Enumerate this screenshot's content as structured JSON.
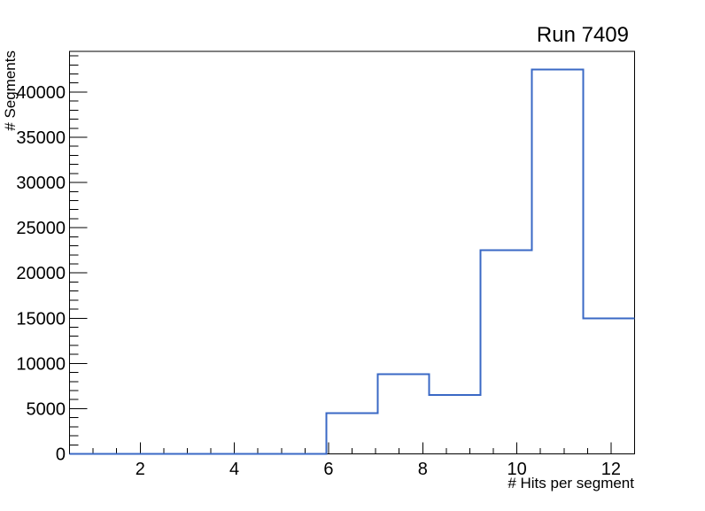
{
  "chart_data": {
    "type": "bar",
    "subtype": "step-histogram",
    "title": "Run 7409",
    "xlabel": "# Hits per segment",
    "ylabel": "# Segments",
    "bin_edges": [
      0.5,
      1.591,
      2.682,
      3.773,
      4.864,
      5.955,
      7.045,
      8.136,
      9.227,
      10.318,
      11.409,
      12.5
    ],
    "values": [
      0,
      0,
      0,
      0,
      0,
      4500,
      8800,
      6500,
      22500,
      42500,
      15000
    ],
    "xlim": [
      0.5,
      12.5
    ],
    "ylim": [
      0,
      44500
    ],
    "x_major_ticks": [
      2,
      4,
      6,
      8,
      10,
      12
    ],
    "x_minor_step": 0.5,
    "y_major_ticks": [
      0,
      5000,
      10000,
      15000,
      20000,
      25000,
      30000,
      35000,
      40000
    ],
    "y_minor_step": 1000,
    "grid": "off",
    "legend": "none",
    "line_color": "#3a68c5",
    "axis_color": "#000000",
    "background_color": "#ffffff"
  }
}
